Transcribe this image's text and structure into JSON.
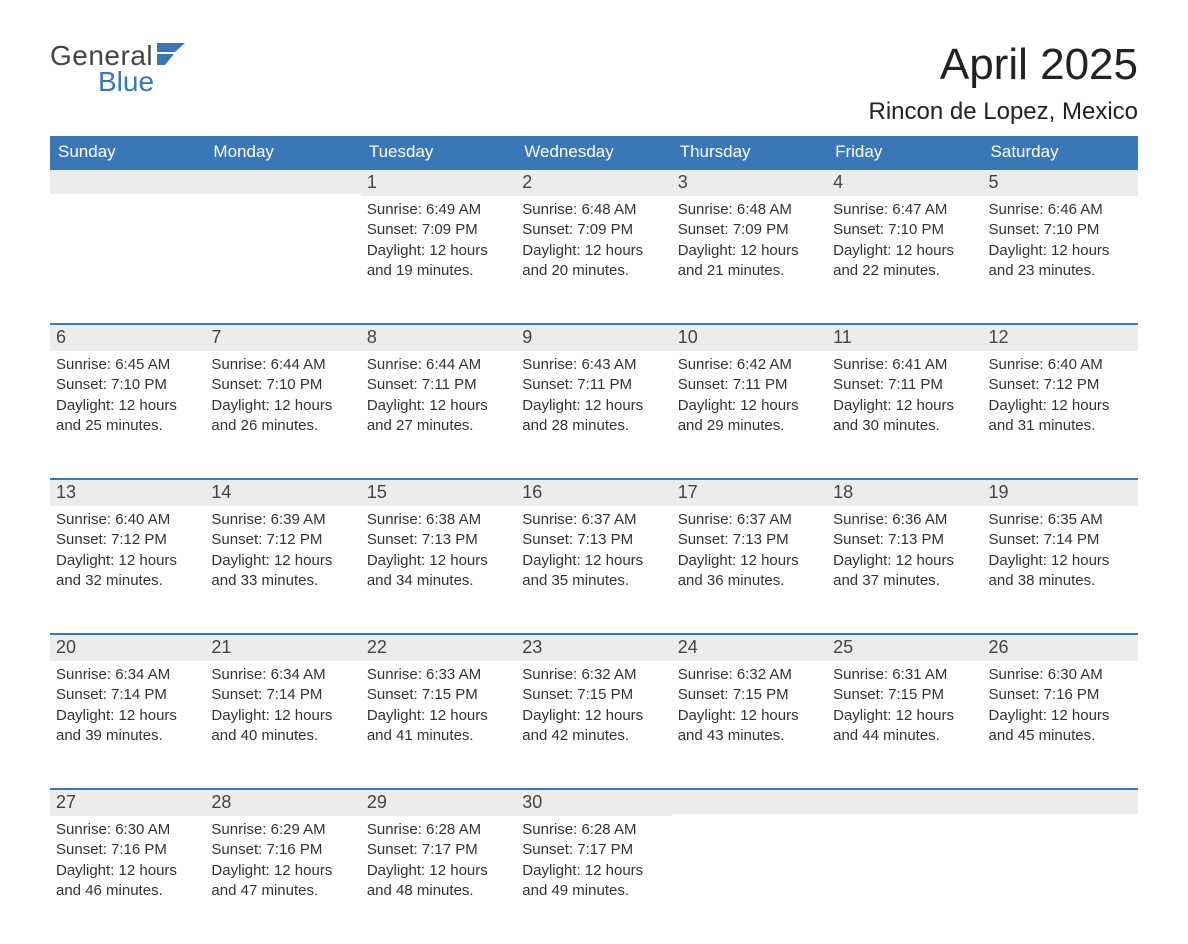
{
  "brand": {
    "word1": "General",
    "word2": "Blue",
    "color_primary": "#3a77b7",
    "color_text": "#444444"
  },
  "header": {
    "title": "April 2025",
    "subtitle": "Rincon de Lopez, Mexico"
  },
  "calendar": {
    "type": "table",
    "columns": [
      "Sunday",
      "Monday",
      "Tuesday",
      "Wednesday",
      "Thursday",
      "Friday",
      "Saturday"
    ],
    "header_bg": "#3a77b7",
    "header_fg": "#ffffff",
    "daynum_bg": "#ececec",
    "row_divider_color": "#3a77b7",
    "body_fontsize": 15,
    "header_fontsize": 17,
    "daynum_fontsize": 18,
    "weeks": [
      [
        null,
        null,
        {
          "n": "1",
          "sunrise": "Sunrise: 6:49 AM",
          "sunset": "Sunset: 7:09 PM",
          "d1": "Daylight: 12 hours",
          "d2": "and 19 minutes."
        },
        {
          "n": "2",
          "sunrise": "Sunrise: 6:48 AM",
          "sunset": "Sunset: 7:09 PM",
          "d1": "Daylight: 12 hours",
          "d2": "and 20 minutes."
        },
        {
          "n": "3",
          "sunrise": "Sunrise: 6:48 AM",
          "sunset": "Sunset: 7:09 PM",
          "d1": "Daylight: 12 hours",
          "d2": "and 21 minutes."
        },
        {
          "n": "4",
          "sunrise": "Sunrise: 6:47 AM",
          "sunset": "Sunset: 7:10 PM",
          "d1": "Daylight: 12 hours",
          "d2": "and 22 minutes."
        },
        {
          "n": "5",
          "sunrise": "Sunrise: 6:46 AM",
          "sunset": "Sunset: 7:10 PM",
          "d1": "Daylight: 12 hours",
          "d2": "and 23 minutes."
        }
      ],
      [
        {
          "n": "6",
          "sunrise": "Sunrise: 6:45 AM",
          "sunset": "Sunset: 7:10 PM",
          "d1": "Daylight: 12 hours",
          "d2": "and 25 minutes."
        },
        {
          "n": "7",
          "sunrise": "Sunrise: 6:44 AM",
          "sunset": "Sunset: 7:10 PM",
          "d1": "Daylight: 12 hours",
          "d2": "and 26 minutes."
        },
        {
          "n": "8",
          "sunrise": "Sunrise: 6:44 AM",
          "sunset": "Sunset: 7:11 PM",
          "d1": "Daylight: 12 hours",
          "d2": "and 27 minutes."
        },
        {
          "n": "9",
          "sunrise": "Sunrise: 6:43 AM",
          "sunset": "Sunset: 7:11 PM",
          "d1": "Daylight: 12 hours",
          "d2": "and 28 minutes."
        },
        {
          "n": "10",
          "sunrise": "Sunrise: 6:42 AM",
          "sunset": "Sunset: 7:11 PM",
          "d1": "Daylight: 12 hours",
          "d2": "and 29 minutes."
        },
        {
          "n": "11",
          "sunrise": "Sunrise: 6:41 AM",
          "sunset": "Sunset: 7:11 PM",
          "d1": "Daylight: 12 hours",
          "d2": "and 30 minutes."
        },
        {
          "n": "12",
          "sunrise": "Sunrise: 6:40 AM",
          "sunset": "Sunset: 7:12 PM",
          "d1": "Daylight: 12 hours",
          "d2": "and 31 minutes."
        }
      ],
      [
        {
          "n": "13",
          "sunrise": "Sunrise: 6:40 AM",
          "sunset": "Sunset: 7:12 PM",
          "d1": "Daylight: 12 hours",
          "d2": "and 32 minutes."
        },
        {
          "n": "14",
          "sunrise": "Sunrise: 6:39 AM",
          "sunset": "Sunset: 7:12 PM",
          "d1": "Daylight: 12 hours",
          "d2": "and 33 minutes."
        },
        {
          "n": "15",
          "sunrise": "Sunrise: 6:38 AM",
          "sunset": "Sunset: 7:13 PM",
          "d1": "Daylight: 12 hours",
          "d2": "and 34 minutes."
        },
        {
          "n": "16",
          "sunrise": "Sunrise: 6:37 AM",
          "sunset": "Sunset: 7:13 PM",
          "d1": "Daylight: 12 hours",
          "d2": "and 35 minutes."
        },
        {
          "n": "17",
          "sunrise": "Sunrise: 6:37 AM",
          "sunset": "Sunset: 7:13 PM",
          "d1": "Daylight: 12 hours",
          "d2": "and 36 minutes."
        },
        {
          "n": "18",
          "sunrise": "Sunrise: 6:36 AM",
          "sunset": "Sunset: 7:13 PM",
          "d1": "Daylight: 12 hours",
          "d2": "and 37 minutes."
        },
        {
          "n": "19",
          "sunrise": "Sunrise: 6:35 AM",
          "sunset": "Sunset: 7:14 PM",
          "d1": "Daylight: 12 hours",
          "d2": "and 38 minutes."
        }
      ],
      [
        {
          "n": "20",
          "sunrise": "Sunrise: 6:34 AM",
          "sunset": "Sunset: 7:14 PM",
          "d1": "Daylight: 12 hours",
          "d2": "and 39 minutes."
        },
        {
          "n": "21",
          "sunrise": "Sunrise: 6:34 AM",
          "sunset": "Sunset: 7:14 PM",
          "d1": "Daylight: 12 hours",
          "d2": "and 40 minutes."
        },
        {
          "n": "22",
          "sunrise": "Sunrise: 6:33 AM",
          "sunset": "Sunset: 7:15 PM",
          "d1": "Daylight: 12 hours",
          "d2": "and 41 minutes."
        },
        {
          "n": "23",
          "sunrise": "Sunrise: 6:32 AM",
          "sunset": "Sunset: 7:15 PM",
          "d1": "Daylight: 12 hours",
          "d2": "and 42 minutes."
        },
        {
          "n": "24",
          "sunrise": "Sunrise: 6:32 AM",
          "sunset": "Sunset: 7:15 PM",
          "d1": "Daylight: 12 hours",
          "d2": "and 43 minutes."
        },
        {
          "n": "25",
          "sunrise": "Sunrise: 6:31 AM",
          "sunset": "Sunset: 7:15 PM",
          "d1": "Daylight: 12 hours",
          "d2": "and 44 minutes."
        },
        {
          "n": "26",
          "sunrise": "Sunrise: 6:30 AM",
          "sunset": "Sunset: 7:16 PM",
          "d1": "Daylight: 12 hours",
          "d2": "and 45 minutes."
        }
      ],
      [
        {
          "n": "27",
          "sunrise": "Sunrise: 6:30 AM",
          "sunset": "Sunset: 7:16 PM",
          "d1": "Daylight: 12 hours",
          "d2": "and 46 minutes."
        },
        {
          "n": "28",
          "sunrise": "Sunrise: 6:29 AM",
          "sunset": "Sunset: 7:16 PM",
          "d1": "Daylight: 12 hours",
          "d2": "and 47 minutes."
        },
        {
          "n": "29",
          "sunrise": "Sunrise: 6:28 AM",
          "sunset": "Sunset: 7:17 PM",
          "d1": "Daylight: 12 hours",
          "d2": "and 48 minutes."
        },
        {
          "n": "30",
          "sunrise": "Sunrise: 6:28 AM",
          "sunset": "Sunset: 7:17 PM",
          "d1": "Daylight: 12 hours",
          "d2": "and 49 minutes."
        },
        null,
        null,
        null
      ]
    ]
  }
}
